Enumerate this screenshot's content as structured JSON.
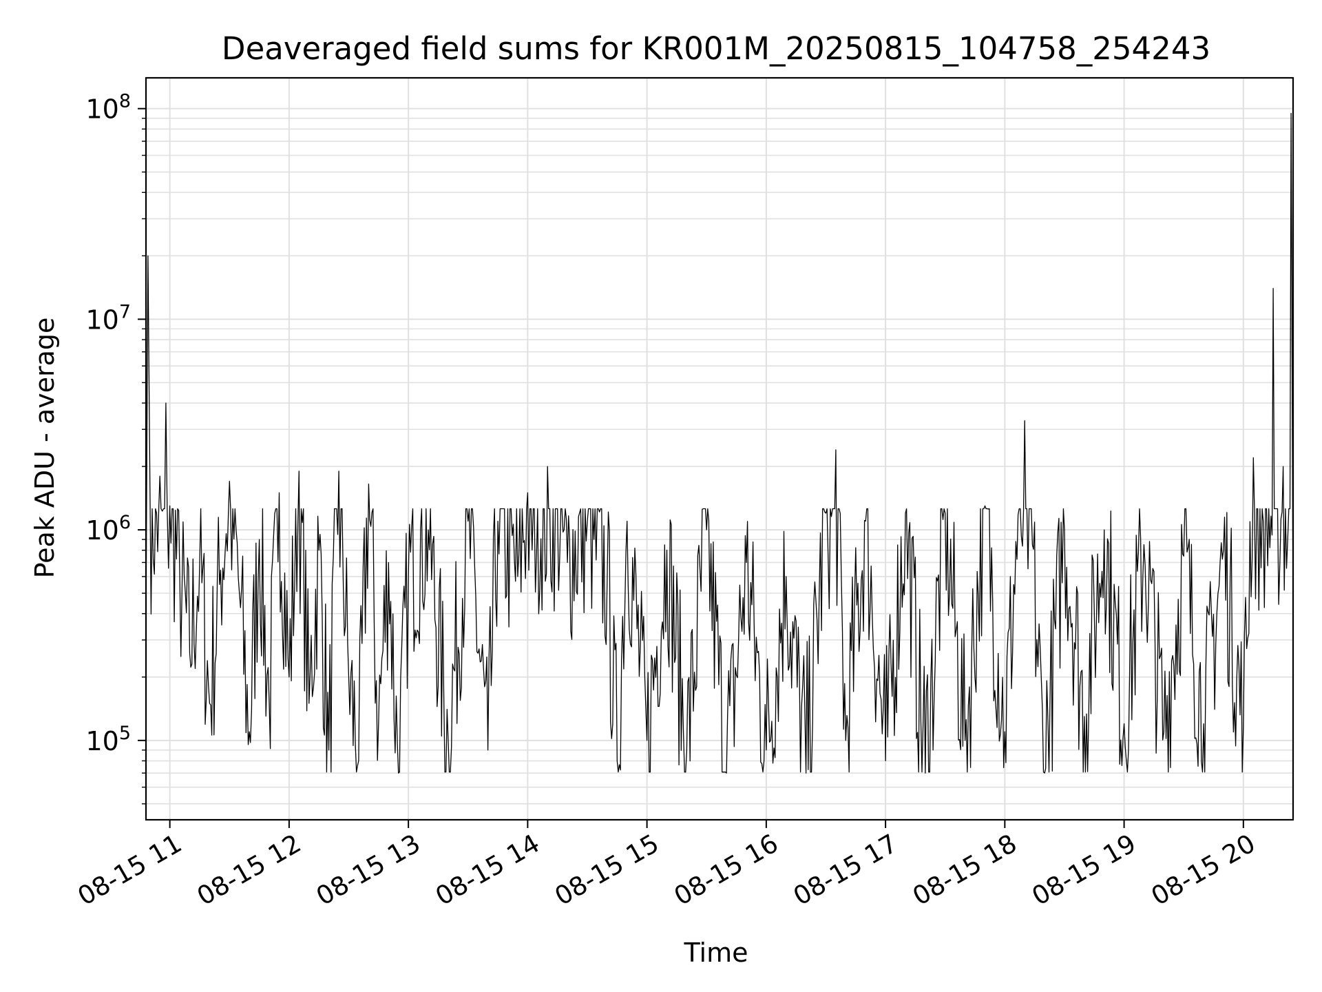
{
  "chart_data": {
    "type": "line",
    "title": "Deaveraged field sums for KR001M_20250815_104758_254243",
    "xlabel": "Time",
    "ylabel": "Peak ADU - average",
    "yscale": "log",
    "xlim": [
      "2025-08-15 10:48",
      "2025-08-15 20:25"
    ],
    "ylim": [
      42000,
      140000000
    ],
    "grid": "on (major and minor)",
    "line_color": "#000000",
    "grid_color": "#e0e0e0",
    "x_ticks": [
      {
        "time": "2025-08-15 11:00",
        "label": "08-15 11"
      },
      {
        "time": "2025-08-15 12:00",
        "label": "08-15 12"
      },
      {
        "time": "2025-08-15 13:00",
        "label": "08-15 13"
      },
      {
        "time": "2025-08-15 14:00",
        "label": "08-15 14"
      },
      {
        "time": "2025-08-15 15:00",
        "label": "08-15 15"
      },
      {
        "time": "2025-08-15 16:00",
        "label": "08-15 16"
      },
      {
        "time": "2025-08-15 17:00",
        "label": "08-15 17"
      },
      {
        "time": "2025-08-15 18:00",
        "label": "08-15 18"
      },
      {
        "time": "2025-08-15 19:00",
        "label": "08-15 19"
      },
      {
        "time": "2025-08-15 20:00",
        "label": "08-15 20"
      }
    ],
    "y_ticks": [
      {
        "value": 100000,
        "base": "10",
        "exp": "5"
      },
      {
        "value": 1000000,
        "base": "10",
        "exp": "6"
      },
      {
        "value": 10000000,
        "base": "10",
        "exp": "7"
      },
      {
        "value": 100000000,
        "base": "10",
        "exp": "8"
      }
    ],
    "series": [
      {
        "points": [
          [
            "2025-08-15 10:48",
            400000
          ],
          [
            "2025-08-15 10:49",
            20000000
          ],
          [
            "2025-08-15 10:50",
            1600000
          ],
          [
            "2025-08-15 10:55",
            1800000
          ],
          [
            "2025-08-15 10:58",
            4000000
          ],
          [
            "2025-08-15 11:00",
            1300000
          ],
          [
            "2025-08-15 11:05",
            600000
          ],
          [
            "2025-08-15 11:10",
            260000
          ],
          [
            "2025-08-15 11:15",
            700000
          ],
          [
            "2025-08-15 11:20",
            150000
          ],
          [
            "2025-08-15 11:25",
            550000
          ],
          [
            "2025-08-15 11:30",
            1700000
          ],
          [
            "2025-08-15 11:35",
            500000
          ],
          [
            "2025-08-15 11:40",
            110000
          ],
          [
            "2025-08-15 11:45",
            900000
          ],
          [
            "2025-08-15 11:50",
            150000
          ],
          [
            "2025-08-15 11:55",
            1500000
          ],
          [
            "2025-08-15 12:00",
            200000
          ],
          [
            "2025-08-15 12:05",
            1900000
          ],
          [
            "2025-08-15 12:10",
            150000
          ],
          [
            "2025-08-15 12:15",
            800000
          ],
          [
            "2025-08-15 12:20",
            90000
          ],
          [
            "2025-08-15 12:25",
            1900000
          ],
          [
            "2025-08-15 12:30",
            200000
          ],
          [
            "2025-08-15 12:35",
            80000
          ],
          [
            "2025-08-15 12:40",
            1650000
          ],
          [
            "2025-08-15 12:45",
            120000
          ],
          [
            "2025-08-15 12:50",
            700000
          ],
          [
            "2025-08-15 12:55",
            70000
          ],
          [
            "2025-08-15 13:00",
            600000
          ],
          [
            "2025-08-15 13:10",
            1000000
          ],
          [
            "2025-08-15 13:20",
            100000
          ],
          [
            "2025-08-15 13:30",
            1100000
          ],
          [
            "2025-08-15 13:40",
            90000
          ],
          [
            "2025-08-15 13:45",
            1100000
          ],
          [
            "2025-08-15 13:55",
            600000
          ],
          [
            "2025-08-15 14:00",
            1500000
          ],
          [
            "2025-08-15 14:10",
            2000000
          ],
          [
            "2025-08-15 14:20",
            700000
          ],
          [
            "2025-08-15 14:30",
            1100000
          ],
          [
            "2025-08-15 14:40",
            600000
          ],
          [
            "2025-08-15 14:45",
            80000
          ],
          [
            "2025-08-15 14:50",
            1100000
          ],
          [
            "2025-08-15 15:00",
            100000
          ],
          [
            "2025-08-15 15:10",
            800000
          ],
          [
            "2025-08-15 15:20",
            90000
          ],
          [
            "2025-08-15 15:30",
            1000000
          ],
          [
            "2025-08-15 15:40",
            70000
          ],
          [
            "2025-08-15 15:50",
            700000
          ],
          [
            "2025-08-15 16:00",
            90000
          ],
          [
            "2025-08-15 16:10",
            600000
          ],
          [
            "2025-08-15 16:20",
            70000
          ],
          [
            "2025-08-15 16:30",
            1200000
          ],
          [
            "2025-08-15 16:35",
            2400000
          ],
          [
            "2025-08-15 16:40",
            100000
          ],
          [
            "2025-08-15 16:50",
            1100000
          ],
          [
            "2025-08-15 17:00",
            80000
          ],
          [
            "2025-08-15 17:10",
            1200000
          ],
          [
            "2025-08-15 17:20",
            70000
          ],
          [
            "2025-08-15 17:30",
            1200000
          ],
          [
            "2025-08-15 17:40",
            100000
          ],
          [
            "2025-08-15 17:50",
            1300000
          ],
          [
            "2025-08-15 18:00",
            110000
          ],
          [
            "2025-08-15 18:10",
            3300000
          ],
          [
            "2025-08-15 18:20",
            70000
          ],
          [
            "2025-08-15 18:30",
            1000000
          ],
          [
            "2025-08-15 18:40",
            130000
          ],
          [
            "2025-08-15 18:50",
            1000000
          ],
          [
            "2025-08-15 19:00",
            120000
          ],
          [
            "2025-08-15 19:10",
            850000
          ],
          [
            "2025-08-15 19:20",
            110000
          ],
          [
            "2025-08-15 19:30",
            750000
          ],
          [
            "2025-08-15 19:40",
            120000
          ],
          [
            "2025-08-15 19:50",
            800000
          ],
          [
            "2025-08-15 20:00",
            115000
          ],
          [
            "2025-08-15 20:05",
            2200000
          ],
          [
            "2025-08-15 20:10",
            1100000
          ],
          [
            "2025-08-15 20:15",
            14000000
          ],
          [
            "2025-08-15 20:20",
            2000000
          ],
          [
            "2025-08-15 20:24",
            95000000
          ],
          [
            "2025-08-15 20:25",
            400000
          ]
        ]
      }
    ]
  }
}
